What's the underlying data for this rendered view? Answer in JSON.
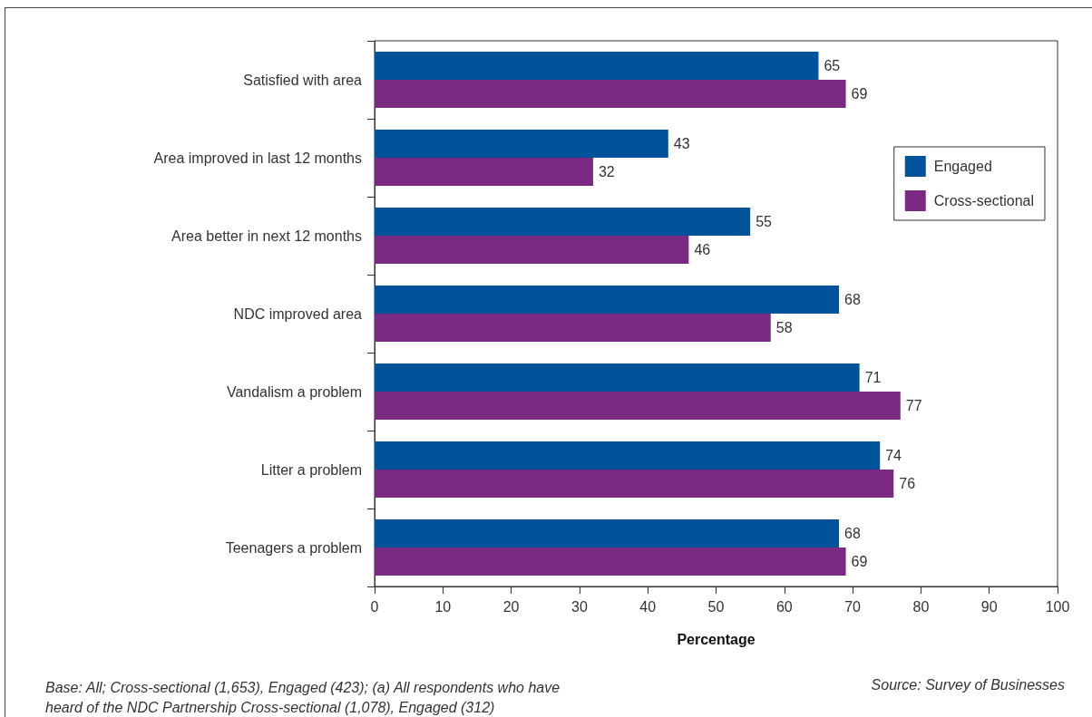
{
  "chart_data": {
    "type": "bar",
    "orientation": "horizontal",
    "categories": [
      "Satisfied with area",
      "Area improved in last 12 months",
      "Area better in next 12 months",
      "NDC improved area",
      "Vandalism a problem",
      "Litter a problem",
      "Teenagers a problem"
    ],
    "series": [
      {
        "name": "Engaged",
        "color": "#00529b",
        "values": [
          65,
          43,
          55,
          68,
          71,
          74,
          68
        ]
      },
      {
        "name": "Cross-sectional",
        "color": "#7b2a83",
        "values": [
          69,
          32,
          46,
          58,
          77,
          76,
          69
        ]
      }
    ],
    "xlim": [
      0,
      100
    ],
    "xticks": [
      0,
      10,
      20,
      30,
      40,
      50,
      60,
      70,
      80,
      90,
      100
    ],
    "xlabel": "Percentage",
    "legend": "top right",
    "data_labels": true,
    "annotations": [
      "Base: All; Cross-sectional (1,653), Engaged (423); (a) All respondents who have heard of the NDC Partnership Cross-sectional (1,078), Engaged (312)",
      "Source: Survey of Businesses"
    ]
  }
}
